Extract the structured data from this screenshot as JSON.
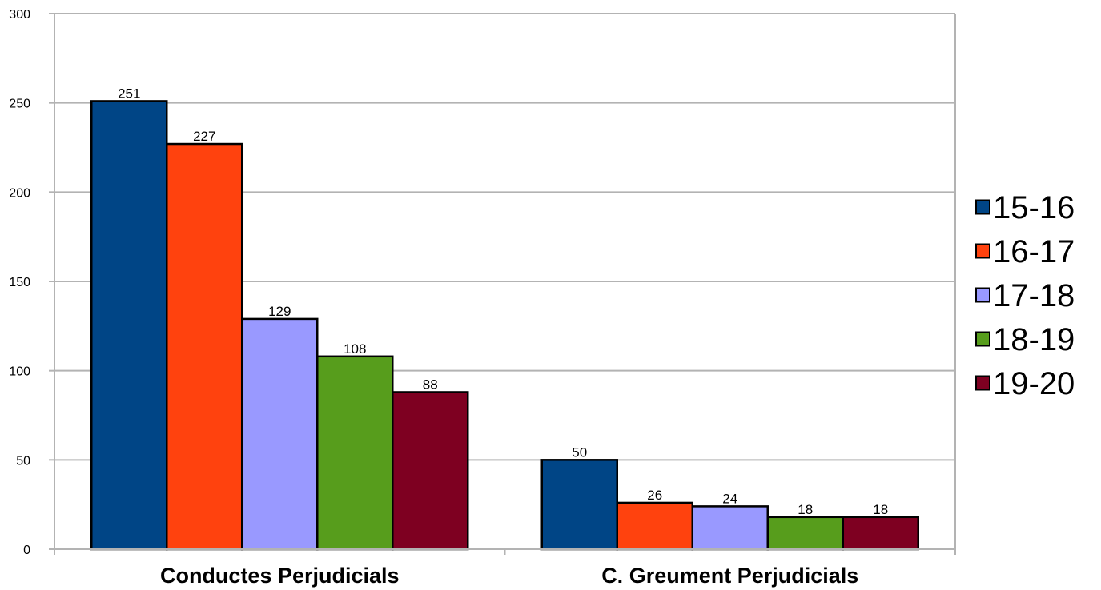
{
  "chart_data": {
    "type": "bar",
    "categories": [
      "Conductes Perjudicials",
      "C. Greument Perjudicials"
    ],
    "series": [
      {
        "name": "15-16",
        "values": [
          251,
          50
        ],
        "color": "#004586"
      },
      {
        "name": "16-17",
        "values": [
          227,
          26
        ],
        "color": "#ff420e"
      },
      {
        "name": "17-18",
        "values": [
          129,
          24
        ],
        "color": "#9999ff"
      },
      {
        "name": "18-19",
        "values": [
          108,
          18
        ],
        "color": "#579d1c"
      },
      {
        "name": "19-20",
        "values": [
          88,
          18
        ],
        "color": "#7e0021"
      }
    ],
    "ylim": [
      0,
      300
    ],
    "yticks": [
      0,
      50,
      100,
      150,
      200,
      250,
      300
    ],
    "ytick_labels": [
      "0",
      "50",
      "100",
      "150",
      "200",
      "250",
      "300"
    ],
    "data_labels": true,
    "grid": true,
    "legend_position": "right",
    "title": "",
    "xlabel": "",
    "ylabel": ""
  }
}
